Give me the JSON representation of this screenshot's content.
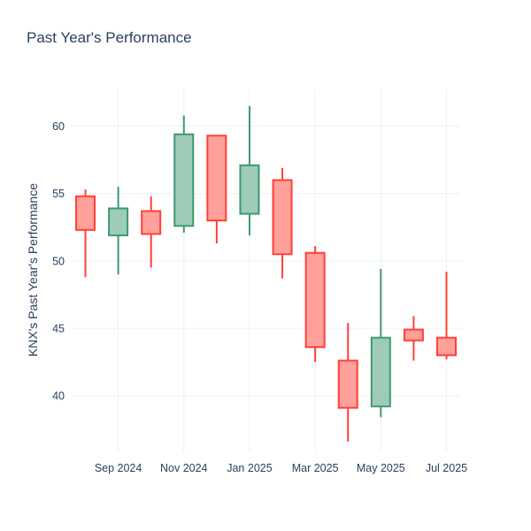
{
  "chart_data": {
    "type": "candlestick",
    "title": "Past Year's Performance",
    "ylabel": "KNX's Past Year's Performance",
    "xlabel": "",
    "legend": "none",
    "grid": true,
    "categories": [
      "Aug 2024",
      "Sep 2024",
      "Oct 2024",
      "Nov 2024",
      "Dec 2024",
      "Jan 2025",
      "Feb 2025",
      "Mar 2025",
      "Apr 2025",
      "May 2025",
      "Jun 2025",
      "Jul 2025"
    ],
    "ohlc": [
      {
        "month": "Aug 2024",
        "open": 54.8,
        "high": 55.3,
        "low": 48.8,
        "close": 52.3
      },
      {
        "month": "Sep 2024",
        "open": 51.9,
        "high": 55.5,
        "low": 49.0,
        "close": 53.9
      },
      {
        "month": "Oct 2024",
        "open": 53.7,
        "high": 54.8,
        "low": 49.5,
        "close": 52.0
      },
      {
        "month": "Nov 2024",
        "open": 52.6,
        "high": 60.8,
        "low": 52.1,
        "close": 59.4
      },
      {
        "month": "Dec 2024",
        "open": 59.3,
        "high": 59.3,
        "low": 51.3,
        "close": 53.0
      },
      {
        "month": "Jan 2025",
        "open": 53.5,
        "high": 61.5,
        "low": 51.9,
        "close": 57.1
      },
      {
        "month": "Feb 2025",
        "open": 56.0,
        "high": 56.9,
        "low": 48.7,
        "close": 50.5
      },
      {
        "month": "Mar 2025",
        "open": 50.6,
        "high": 51.1,
        "low": 42.5,
        "close": 43.6
      },
      {
        "month": "Apr 2025",
        "open": 42.6,
        "high": 45.4,
        "low": 36.6,
        "close": 39.1
      },
      {
        "month": "May 2025",
        "open": 39.2,
        "high": 49.4,
        "low": 38.4,
        "close": 44.3
      },
      {
        "month": "Jun 2025",
        "open": 44.9,
        "high": 45.9,
        "low": 42.6,
        "close": 44.1
      },
      {
        "month": "Jul 2025",
        "open": 44.3,
        "high": 49.2,
        "low": 42.7,
        "close": 43.0
      }
    ],
    "x_tick_labels": [
      "Sep 2024",
      "Nov 2024",
      "Jan 2025",
      "Mar 2025",
      "May 2025",
      "Jul 2025"
    ],
    "y_ticks": [
      40,
      45,
      50,
      55,
      60
    ],
    "y_range": [
      35.8,
      62.8
    ]
  },
  "colors": {
    "increasing_line": "#3D9970",
    "increasing_fill": "#9ECCB8",
    "decreasing_line": "#FF4136",
    "decreasing_fill": "#FFA09B",
    "grid": "#EBF0F8",
    "text": "#2A3F5F",
    "background": "#FFFFFF"
  }
}
